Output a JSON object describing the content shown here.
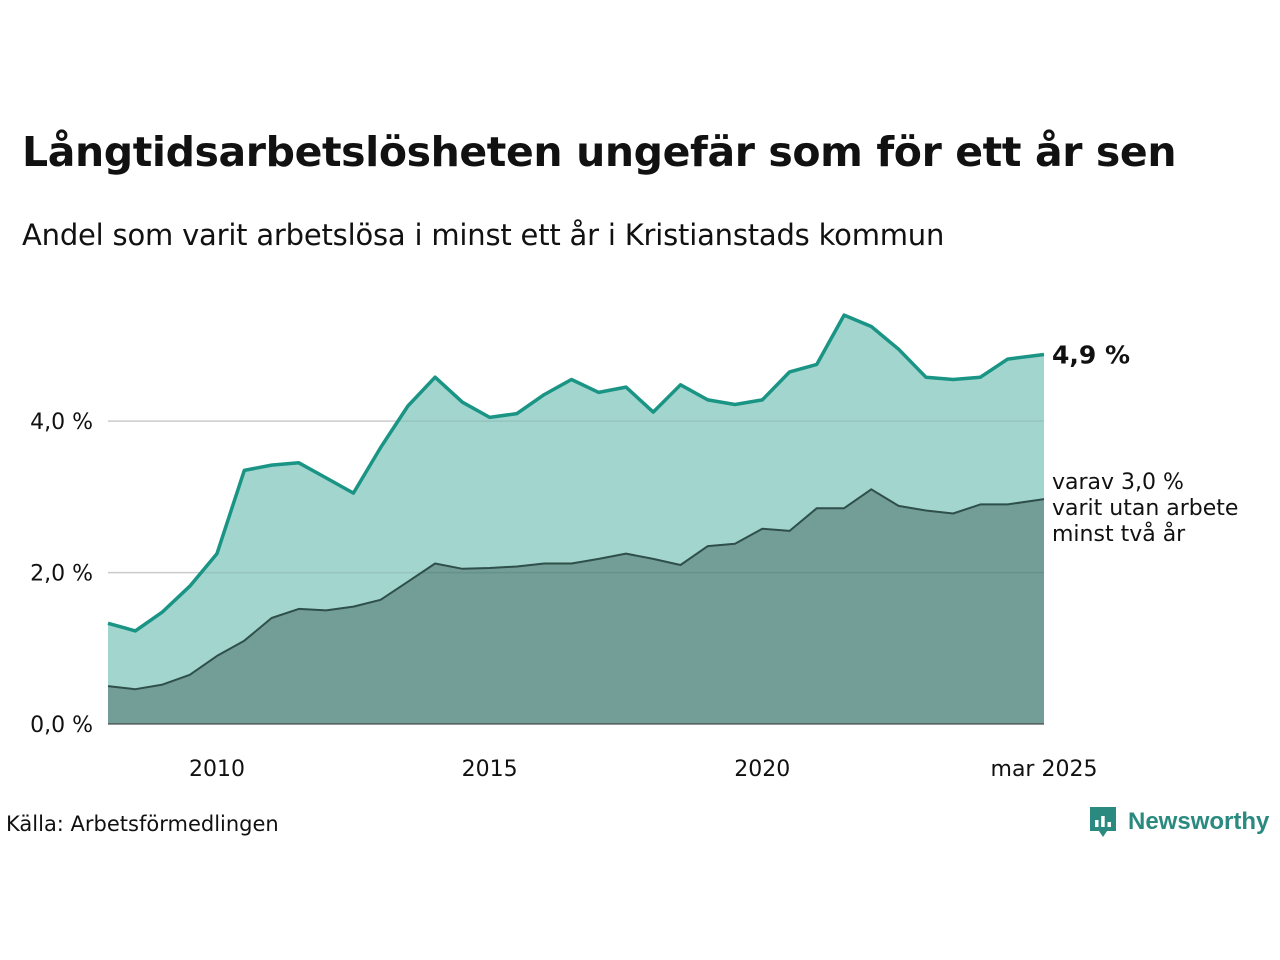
{
  "title": "Långtidsarbetslösheten ungefär som för ett år sen",
  "subtitle": "Andel som varit arbetslösa i minst ett år i Kristianstads kommun",
  "source": "Källa: Arbetsförmedlingen",
  "brand": "Newsworthy",
  "colors": {
    "total_line": "#1a9484",
    "total_fill": "#a3d5cf",
    "long_line": "#2f4f4a",
    "long_fill": "#729e97",
    "brand": "#2a8a80"
  },
  "chart_data": {
    "type": "area",
    "title": "Långtidsarbetslösheten ungefär som för ett år sen",
    "subtitle": "Andel som varit arbetslösa i minst ett år i Kristianstads kommun",
    "x": [
      "2008-01",
      "2008-07",
      "2009-01",
      "2009-07",
      "2010-01",
      "2010-07",
      "2011-01",
      "2011-07",
      "2012-01",
      "2012-07",
      "2013-01",
      "2013-07",
      "2014-01",
      "2014-07",
      "2015-01",
      "2015-07",
      "2016-01",
      "2016-07",
      "2017-01",
      "2017-07",
      "2018-01",
      "2018-07",
      "2019-01",
      "2019-07",
      "2020-01",
      "2020-07",
      "2021-01",
      "2021-07",
      "2022-01",
      "2022-07",
      "2023-01",
      "2023-07",
      "2024-01",
      "2024-07",
      "2025-03"
    ],
    "series": [
      {
        "key": "total",
        "values": [
          1.33,
          1.23,
          1.48,
          1.82,
          2.25,
          3.35,
          3.42,
          3.45,
          3.25,
          3.05,
          3.65,
          4.2,
          4.58,
          4.25,
          4.05,
          4.1,
          4.35,
          4.55,
          4.38,
          4.45,
          4.12,
          4.48,
          4.28,
          4.22,
          4.28,
          4.65,
          4.75,
          5.4,
          5.25,
          4.95,
          4.58,
          4.55,
          4.58,
          4.82,
          4.88
        ]
      },
      {
        "key": "long",
        "values": [
          0.5,
          0.46,
          0.52,
          0.65,
          0.9,
          1.1,
          1.4,
          1.52,
          1.5,
          1.55,
          1.64,
          1.88,
          2.12,
          2.05,
          2.06,
          2.08,
          2.12,
          2.12,
          2.18,
          2.25,
          2.18,
          2.1,
          2.35,
          2.38,
          2.58,
          2.55,
          2.85,
          2.85,
          3.1,
          2.88,
          2.82,
          2.78,
          2.9,
          2.9,
          2.97
        ]
      }
    ],
    "x_ticks": [
      "2010",
      "2015",
      "2020",
      "mar 2025"
    ],
    "y_ticks": [
      "0,0 %",
      "2,0 %",
      "4,0 %"
    ],
    "ylim": [
      0,
      5.6
    ],
    "grid": true,
    "annotations": {
      "total_label": "4,9 %",
      "long_label": [
        "varav 3,0 %",
        "varit utan arbete",
        "minst två år"
      ]
    }
  }
}
